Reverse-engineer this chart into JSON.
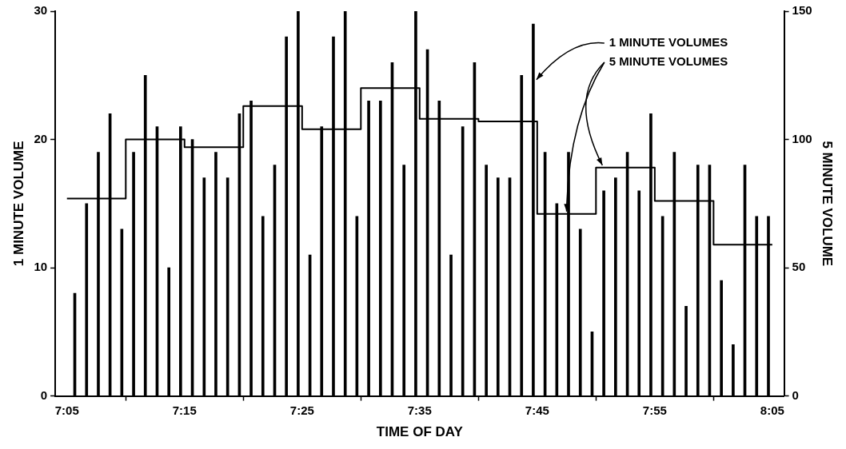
{
  "chart_data": {
    "type": "bar",
    "xlabel": "TIME OF DAY",
    "ylabel": "1 MINUTE VOLUME",
    "y2label": "5 MINUTE VOLUME",
    "xlim": [
      7.0667,
      8.1
    ],
    "xticks": [
      {
        "value": 7.0833,
        "label": "7:05"
      },
      {
        "value": 7.25,
        "label": "7:15"
      },
      {
        "value": 7.4167,
        "label": "7:25"
      },
      {
        "value": 7.5833,
        "label": "7:35"
      },
      {
        "value": 7.75,
        "label": "7:45"
      },
      {
        "value": 7.9167,
        "label": "7:55"
      },
      {
        "value": 8.0833,
        "label": "8:05"
      }
    ],
    "ylim": [
      0,
      30
    ],
    "yticks": [
      0,
      10,
      20,
      30
    ],
    "y2lim": [
      0,
      150
    ],
    "y2ticks": [
      0,
      50,
      100,
      150
    ],
    "grid": false,
    "legend": false,
    "series": [
      {
        "name": "1 MINUTE VOLUMES",
        "color": "#000000",
        "x": [
          7.0944,
          7.1111,
          7.1278,
          7.1444,
          7.1611,
          7.1778,
          7.1944,
          7.2111,
          7.2278,
          7.2444,
          7.2611,
          7.2778,
          7.2944,
          7.3111,
          7.3278,
          7.3444,
          7.3611,
          7.3778,
          7.3944,
          7.4111,
          7.4278,
          7.4444,
          7.4611,
          7.4778,
          7.4944,
          7.5111,
          7.5278,
          7.5444,
          7.5611,
          7.5778,
          7.5944,
          7.6111,
          7.6278,
          7.6444,
          7.6611,
          7.6778,
          7.6944,
          7.7111,
          7.7278,
          7.7444,
          7.7611,
          7.7778,
          7.7944,
          7.8111,
          7.8278,
          7.8444,
          7.8611,
          7.8778,
          7.8944,
          7.9111,
          7.9278,
          7.9444,
          7.9611,
          7.9778,
          7.9944,
          8.0111,
          8.0278,
          8.0444,
          8.0611,
          8.0778
        ],
        "values": [
          8,
          15,
          19,
          22,
          13,
          19,
          25,
          21,
          10,
          21,
          20,
          17,
          19,
          17,
          22,
          23,
          14,
          18,
          28,
          30,
          11,
          21,
          28,
          30,
          14,
          23,
          23,
          26,
          18,
          30,
          27,
          23,
          11,
          21,
          26,
          18,
          17,
          17,
          25,
          29,
          19,
          15,
          19,
          13,
          5,
          16,
          17,
          19,
          16,
          22,
          14,
          19,
          7,
          18,
          18,
          9,
          4,
          18,
          14,
          14
        ]
      },
      {
        "name": "5 MINUTE VOLUMES",
        "type": "step",
        "axis": "y2",
        "color": "#000000",
        "x": [
          7.0833,
          7.1667,
          7.25,
          7.3333,
          7.4167,
          7.5,
          7.5833,
          7.6667,
          7.75,
          7.8333,
          7.9167,
          8.0,
          8.0833
        ],
        "values": [
          77,
          100,
          97,
          113,
          104,
          120,
          108,
          107,
          71,
          89,
          76,
          59,
          59
        ]
      }
    ]
  }
}
